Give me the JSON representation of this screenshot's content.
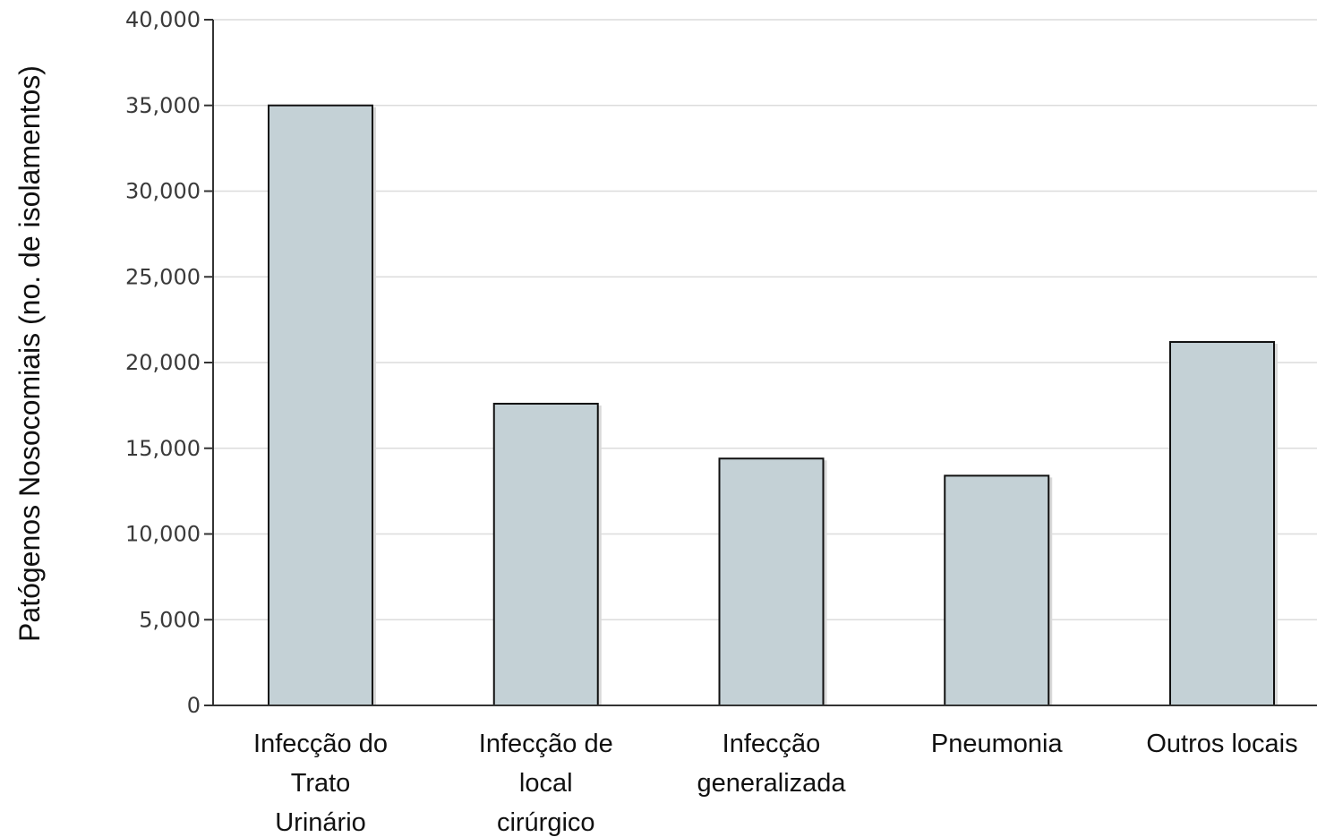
{
  "chart_data": {
    "type": "bar",
    "categories": [
      [
        "Infecção do",
        "Trato",
        "Urinário"
      ],
      [
        "Infecção de",
        "local",
        "cirúrgico"
      ],
      [
        "Infecção",
        "generalizada"
      ],
      [
        "Pneumonia"
      ],
      [
        "Outros locais"
      ]
    ],
    "values": [
      35000,
      17600,
      14400,
      13400,
      21200
    ],
    "title": "",
    "xlabel": "",
    "ylabel": "Patógenos Nosocomiais (no. de isolamentos)",
    "ylim": [
      0,
      40000
    ],
    "yticks": [
      0,
      5000,
      10000,
      15000,
      20000,
      25000,
      30000,
      35000,
      40000
    ],
    "ytick_labels": [
      "0",
      "5,000",
      "10,000",
      "15,000",
      "20,000",
      "25,000",
      "30,000",
      "35,000",
      "40,000"
    ],
    "grid": true,
    "bar_color": "#c4d1d6",
    "bar_edge_color": "#111111"
  }
}
